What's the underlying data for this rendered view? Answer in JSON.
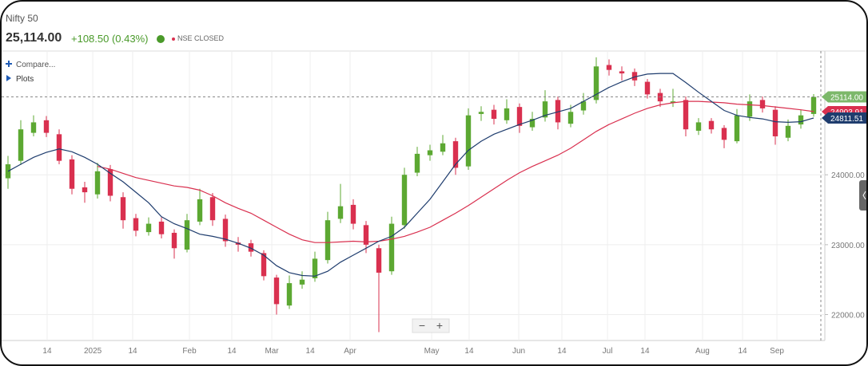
{
  "header": {
    "name": "Nifty 50",
    "price": "25,114.00",
    "change": "+108.50 (0.43%)",
    "status": "NSE CLOSED"
  },
  "sidebar": {
    "compare": "Compare...",
    "plots": "Plots"
  },
  "zoom": {
    "out": "−",
    "in": "+"
  },
  "chart_data": {
    "type": "candlestick",
    "open": [
      23950,
      24200,
      24600,
      24780,
      24580,
      24220,
      23820,
      23720,
      24080,
      23680,
      23380,
      23180,
      23330,
      23170,
      22930,
      23330,
      23680,
      23370,
      23030,
      23020,
      22880,
      22530,
      22130,
      22430,
      22520,
      22780,
      23370,
      23570,
      23280,
      22950,
      22620,
      23280,
      24030,
      24280,
      24330,
      24480,
      24120,
      24870,
      24930,
      24780,
      24970,
      24680,
      24820,
      25070,
      24730,
      24920,
      25070,
      25570,
      25480,
      25470,
      25330,
      25170,
      25030,
      25070,
      24630,
      24770,
      24670,
      24480,
      24830,
      25070,
      24930,
      24530,
      24720,
      24870
    ],
    "high": [
      24270,
      24780,
      24850,
      24840,
      24650,
      24280,
      23900,
      24170,
      24140,
      23750,
      23440,
      23390,
      23390,
      23220,
      23440,
      23800,
      23740,
      23430,
      23110,
      23070,
      22920,
      22570,
      22560,
      22620,
      22900,
      23470,
      23870,
      23650,
      23340,
      23000,
      23400,
      24100,
      24400,
      24430,
      24570,
      24530,
      24950,
      24980,
      25000,
      25080,
      25020,
      24900,
      25210,
      25120,
      25000,
      25170,
      25680,
      25650,
      25550,
      25520,
      25370,
      25230,
      25230,
      25120,
      24810,
      24810,
      24710,
      24940,
      25150,
      25120,
      24980,
      24790,
      24930,
      25154
    ],
    "low": [
      23800,
      24140,
      24550,
      24540,
      24150,
      23720,
      23600,
      23660,
      23620,
      23230,
      23120,
      23130,
      23090,
      22800,
      22890,
      23280,
      23270,
      22970,
      22900,
      22830,
      22490,
      22000,
      22080,
      22370,
      22470,
      22730,
      23310,
      23220,
      22880,
      21750,
      22570,
      23230,
      23980,
      24200,
      24280,
      24000,
      24070,
      24770,
      24720,
      24730,
      24600,
      24630,
      24760,
      24650,
      24680,
      24860,
      25020,
      25420,
      25350,
      25270,
      25090,
      24970,
      24970,
      24550,
      24570,
      24590,
      24380,
      24450,
      24770,
      24890,
      24430,
      24480,
      24660,
      24830
    ],
    "close": [
      24150,
      24650,
      24750,
      24600,
      24200,
      23800,
      23750,
      24050,
      23700,
      23350,
      23200,
      23300,
      23150,
      22950,
      23350,
      23650,
      23350,
      23050,
      23000,
      22900,
      22550,
      22150,
      22450,
      22500,
      22800,
      23350,
      23550,
      23300,
      23000,
      22600,
      23300,
      24000,
      24300,
      24350,
      24450,
      24100,
      24850,
      24900,
      24800,
      24950,
      24700,
      24800,
      25050,
      24750,
      24900,
      25050,
      25550,
      25500,
      25450,
      25350,
      25150,
      25050,
      25050,
      24650,
      24750,
      24650,
      24500,
      24850,
      25050,
      24950,
      24550,
      24700,
      24850,
      25114
    ],
    "up_color": "#5ca832",
    "down_color": "#d9304f",
    "last_label": {
      "value": 25114,
      "label": "25114.00"
    },
    "last_color": "#7cb86a",
    "series": [
      {
        "color": "#d9304f",
        "last_label": {
          "value": 24903.91,
          "label": "24903.91"
        },
        "values": [
          null,
          null,
          null,
          null,
          null,
          null,
          null,
          24120,
          24080,
          24020,
          23960,
          23920,
          23880,
          23840,
          23820,
          23780,
          23700,
          23600,
          23520,
          23450,
          23350,
          23250,
          23150,
          23070,
          23030,
          23030,
          23040,
          23050,
          23040,
          23050,
          23080,
          23120,
          23180,
          23250,
          23350,
          23450,
          23560,
          23680,
          23800,
          23920,
          24030,
          24120,
          24200,
          24280,
          24380,
          24500,
          24620,
          24720,
          24800,
          24880,
          24950,
          25000,
          25030,
          25050,
          25050,
          25040,
          25030,
          25010,
          25000,
          24990,
          24970,
          24950,
          24930,
          24903.91
        ]
      },
      {
        "color": "#1f3d6e",
        "last_label": {
          "value": 24811.51,
          "label": "24811.51"
        },
        "values": [
          24050,
          24150,
          24250,
          24320,
          24370,
          24330,
          24250,
          24150,
          24020,
          23900,
          23750,
          23600,
          23400,
          23300,
          23230,
          23150,
          23120,
          23080,
          23020,
          22950,
          22850,
          22700,
          22600,
          22560,
          22550,
          22620,
          22750,
          22850,
          22950,
          23050,
          23120,
          23250,
          23450,
          23650,
          23900,
          24150,
          24350,
          24480,
          24580,
          24650,
          24720,
          24780,
          24850,
          24900,
          24950,
          25050,
          25150,
          25250,
          25330,
          25400,
          25440,
          25450,
          25450,
          25320,
          25180,
          25050,
          24920,
          24850,
          24820,
          24800,
          24760,
          24750,
          24760,
          24811.51
        ]
      }
    ],
    "ylim": [
      21630,
      25770
    ],
    "yticks": [
      {
        "value": 22000,
        "label": "22000.00"
      },
      {
        "value": 23000,
        "label": "23000.00"
      },
      {
        "value": 24000,
        "label": "24000.00"
      }
    ],
    "xlim": [
      -0.5,
      63.875
    ],
    "xticks": [
      {
        "value": 3.06,
        "label": "14"
      },
      {
        "value": 6.63,
        "label": "2025"
      },
      {
        "value": 9.75,
        "label": "14"
      },
      {
        "value": 14.19,
        "label": "Feb"
      },
      {
        "value": 17.5,
        "label": "14"
      },
      {
        "value": 20.63,
        "label": "Mar"
      },
      {
        "value": 23.63,
        "label": "14"
      },
      {
        "value": 26.75,
        "label": "Apr"
      },
      {
        "value": 33.13,
        "label": "May"
      },
      {
        "value": 36.06,
        "label": "14"
      },
      {
        "value": 39.94,
        "label": "Jun"
      },
      {
        "value": 43.31,
        "label": "14"
      },
      {
        "value": 46.88,
        "label": "Jul"
      },
      {
        "value": 49.81,
        "label": "14"
      },
      {
        "value": 54.31,
        "label": "Aug"
      },
      {
        "value": 57.44,
        "label": "14"
      },
      {
        "value": 60.13,
        "label": "Sep"
      }
    ],
    "grid": true
  }
}
